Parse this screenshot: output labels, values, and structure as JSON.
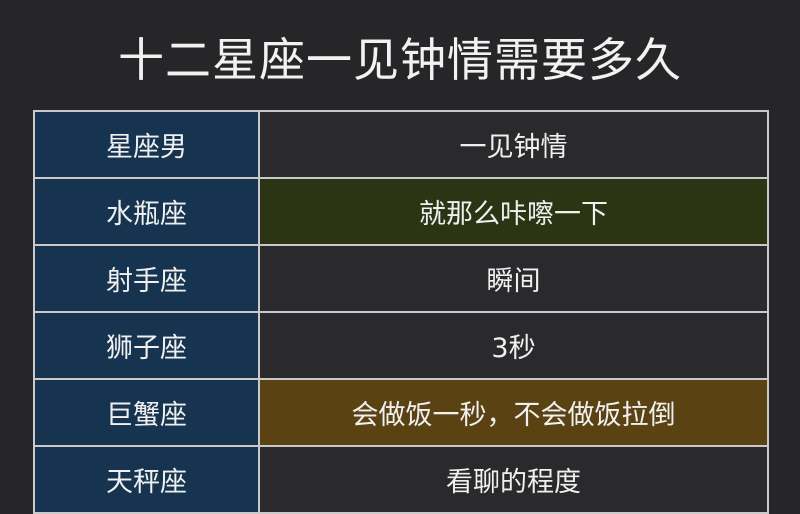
{
  "title": "十二星座一见钟情需要多久",
  "header": {
    "sign": "星座男",
    "value": "一见钟情"
  },
  "rows": [
    {
      "sign": "水瓶座",
      "value": "就那么咔嚓一下",
      "highlight": "green"
    },
    {
      "sign": "射手座",
      "value": "瞬间",
      "highlight": ""
    },
    {
      "sign": "狮子座",
      "value": "3秒",
      "highlight": ""
    },
    {
      "sign": "巨蟹座",
      "value": "会做饭一秒，不会做饭拉倒",
      "highlight": "brown"
    },
    {
      "sign": "天秤座",
      "value": "看聊的程度",
      "highlight": ""
    }
  ],
  "colors": {
    "key_column": "#16344f",
    "value_cell": "#2a2a2c",
    "green": "#2b3514",
    "brown": "#5a4212",
    "background": "#262628"
  }
}
